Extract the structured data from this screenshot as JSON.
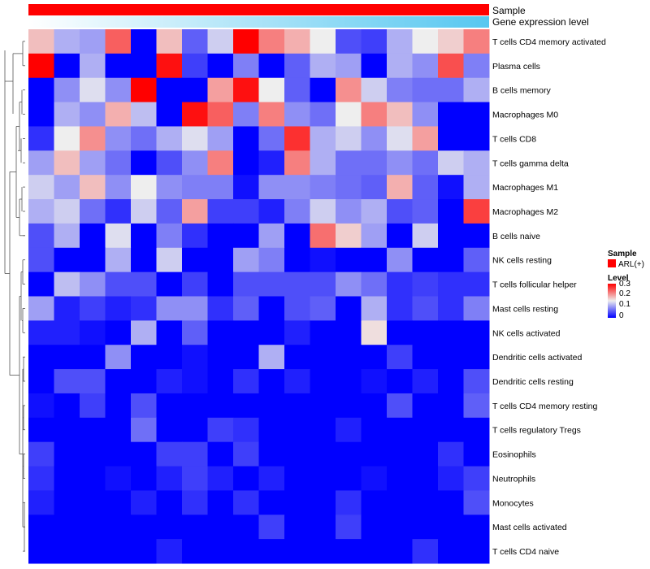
{
  "chart_data": {
    "type": "heatmap",
    "annotations": [
      {
        "name": "Sample",
        "color": "#ff0000"
      },
      {
        "name": "Gene expression level",
        "gradient": [
          "#ffffff",
          "#56c7f0"
        ]
      }
    ],
    "rows": [
      "T cells CD4 memory activated",
      "Plasma cells",
      "B cells memory",
      "Macrophages M0",
      "T cells CD8",
      "T cells gamma delta",
      "Macrophages M1",
      "Macrophages M2",
      "B cells naive",
      "NK cells resting",
      "T cells follicular helper",
      "Mast cells resting",
      "NK cells activated",
      "Dendritic cells activated",
      "Dendritic cells resting",
      "T cells CD4 memory resting",
      "T cells regulatory  Tregs",
      "Eosinophils",
      "Neutrophils",
      "Monocytes",
      "Mast cells activated",
      "T cells CD4 naive"
    ],
    "n_columns": 18,
    "values": [
      [
        0.18,
        0.11,
        0.1,
        0.24,
        0.0,
        0.18,
        0.06,
        0.13,
        0.3,
        0.22,
        0.19,
        0.15,
        0.05,
        0.04,
        0.11,
        0.15,
        0.17,
        0.22
      ],
      [
        0.3,
        0.0,
        0.11,
        0.0,
        0.0,
        0.29,
        0.04,
        0.0,
        0.08,
        0.0,
        0.06,
        0.11,
        0.1,
        0.0,
        0.11,
        0.09,
        0.25,
        0.08
      ],
      [
        0.0,
        0.09,
        0.14,
        0.09,
        0.3,
        0.0,
        0.0,
        0.2,
        0.29,
        0.15,
        0.06,
        0.0,
        0.21,
        0.13,
        0.08,
        0.07,
        0.07,
        0.11
      ],
      [
        0.0,
        0.11,
        0.09,
        0.19,
        0.12,
        0.0,
        0.29,
        0.24,
        0.08,
        0.22,
        0.09,
        0.07,
        0.15,
        0.22,
        0.18,
        0.09,
        0.0,
        0.0
      ],
      [
        0.03,
        0.15,
        0.21,
        0.09,
        0.07,
        0.11,
        0.14,
        0.1,
        0.0,
        0.07,
        0.27,
        0.11,
        0.13,
        0.09,
        0.14,
        0.2,
        0.0,
        0.0
      ],
      [
        0.1,
        0.18,
        0.1,
        0.07,
        0.0,
        0.05,
        0.09,
        0.22,
        0.0,
        0.02,
        0.22,
        0.11,
        0.07,
        0.07,
        0.09,
        0.07,
        0.13,
        0.11
      ],
      [
        0.13,
        0.1,
        0.18,
        0.09,
        0.15,
        0.09,
        0.08,
        0.08,
        0.01,
        0.09,
        0.09,
        0.08,
        0.07,
        0.06,
        0.19,
        0.06,
        0.01,
        0.11
      ],
      [
        0.11,
        0.13,
        0.07,
        0.03,
        0.13,
        0.06,
        0.2,
        0.04,
        0.04,
        0.02,
        0.08,
        0.13,
        0.09,
        0.11,
        0.05,
        0.06,
        0.0,
        0.26
      ],
      [
        0.05,
        0.11,
        0.0,
        0.14,
        0.0,
        0.08,
        0.03,
        0.0,
        0.0,
        0.1,
        0.0,
        0.23,
        0.17,
        0.1,
        0.0,
        0.13,
        0.0,
        0.0
      ],
      [
        0.05,
        0.0,
        0.0,
        0.11,
        0.0,
        0.13,
        0.0,
        0.0,
        0.1,
        0.08,
        0.0,
        0.01,
        0.0,
        0.0,
        0.09,
        0.0,
        0.0,
        0.06
      ],
      [
        0.0,
        0.12,
        0.09,
        0.05,
        0.05,
        0.0,
        0.04,
        0.0,
        0.05,
        0.05,
        0.05,
        0.05,
        0.09,
        0.07,
        0.03,
        0.04,
        0.03,
        0.03
      ],
      [
        0.1,
        0.02,
        0.04,
        0.02,
        0.03,
        0.09,
        0.09,
        0.03,
        0.06,
        0.0,
        0.05,
        0.06,
        0.0,
        0.11,
        0.03,
        0.05,
        0.03,
        0.08
      ],
      [
        0.02,
        0.02,
        0.01,
        0.0,
        0.11,
        0.0,
        0.06,
        0.0,
        0.0,
        0.0,
        0.02,
        0.0,
        0.0,
        0.16,
        0.0,
        0.0,
        0.0,
        0.0
      ],
      [
        0.0,
        0.0,
        0.0,
        0.09,
        0.0,
        0.0,
        0.01,
        0.0,
        0.0,
        0.11,
        0.0,
        0.0,
        0.0,
        0.0,
        0.04,
        0.0,
        0.0,
        0.0
      ],
      [
        0.0,
        0.05,
        0.05,
        0.0,
        0.0,
        0.02,
        0.01,
        0.0,
        0.03,
        0.0,
        0.02,
        0.0,
        0.0,
        0.01,
        0.0,
        0.02,
        0.0,
        0.05
      ],
      [
        0.01,
        0.0,
        0.04,
        0.0,
        0.05,
        0.0,
        0.0,
        0.0,
        0.0,
        0.0,
        0.0,
        0.0,
        0.0,
        0.0,
        0.05,
        0.0,
        0.0,
        0.06
      ],
      [
        0.0,
        0.0,
        0.0,
        0.0,
        0.07,
        0.0,
        0.0,
        0.04,
        0.03,
        0.0,
        0.0,
        0.0,
        0.02,
        0.0,
        0.0,
        0.0,
        0.0,
        0.0
      ],
      [
        0.04,
        0.0,
        0.0,
        0.0,
        0.0,
        0.04,
        0.04,
        0.0,
        0.04,
        0.0,
        0.0,
        0.0,
        0.0,
        0.0,
        0.0,
        0.0,
        0.03,
        0.0
      ],
      [
        0.03,
        0.0,
        0.0,
        0.01,
        0.0,
        0.02,
        0.04,
        0.02,
        0.0,
        0.02,
        0.0,
        0.0,
        0.0,
        0.01,
        0.0,
        0.0,
        0.02,
        0.04
      ],
      [
        0.02,
        0.0,
        0.0,
        0.0,
        0.02,
        0.0,
        0.03,
        0.0,
        0.03,
        0.0,
        0.0,
        0.0,
        0.03,
        0.0,
        0.0,
        0.0,
        0.0,
        0.05
      ],
      [
        0.0,
        0.0,
        0.0,
        0.0,
        0.0,
        0.0,
        0.0,
        0.0,
        0.0,
        0.04,
        0.0,
        0.0,
        0.04,
        0.0,
        0.0,
        0.0,
        0.0,
        0.0
      ],
      [
        0.0,
        0.0,
        0.0,
        0.0,
        0.0,
        0.02,
        0.0,
        0.0,
        0.0,
        0.0,
        0.0,
        0.0,
        0.0,
        0.0,
        0.0,
        0.03,
        0.0,
        0.0
      ]
    ],
    "color_scale": {
      "min": 0,
      "max": 0.3,
      "low": "#0000ff",
      "mid": "#eeeeee",
      "high": "#ff0000",
      "mid_value": 0.15
    },
    "legend": {
      "sample_title": "Sample",
      "sample_entry": "ARL(+)",
      "sample_color": "#ff0000",
      "level_title": "Level",
      "level_ticks": [
        "0.3",
        "0.2",
        "0.1",
        "0"
      ]
    }
  }
}
